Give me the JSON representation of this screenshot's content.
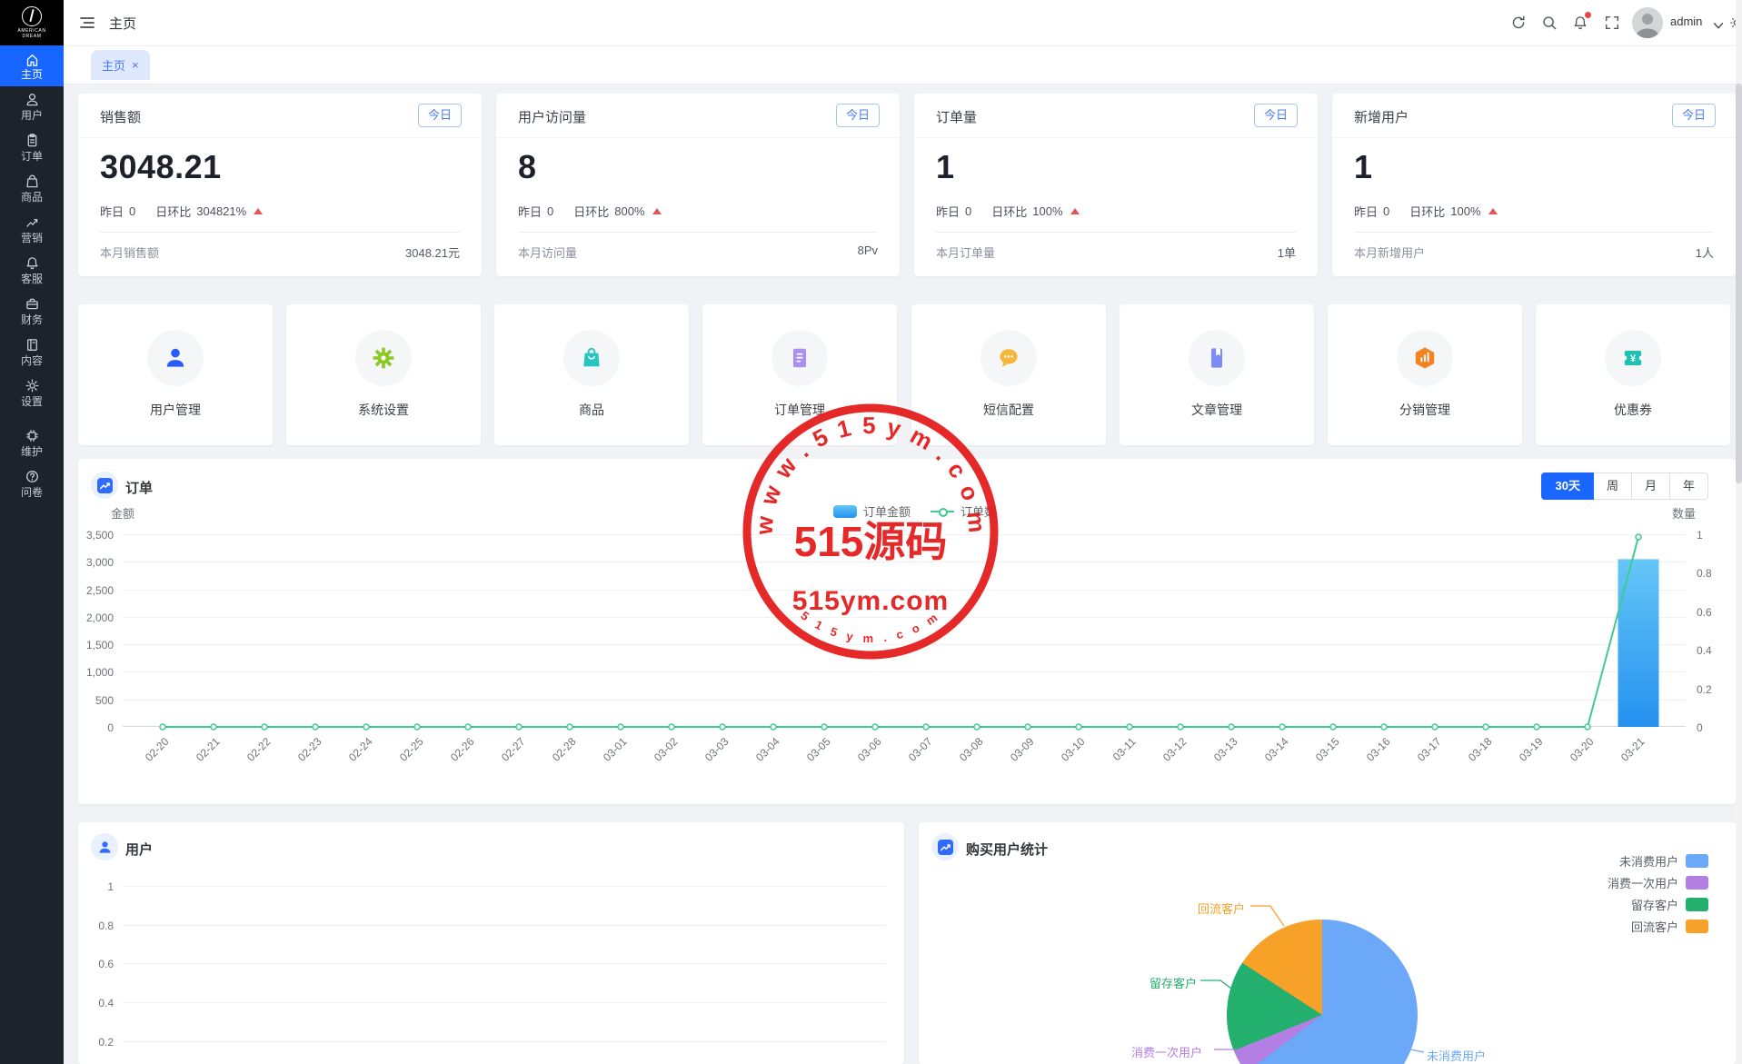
{
  "app": {
    "topbar": {
      "title": "主页",
      "user_name": "admin"
    },
    "logo": {
      "line1": "AMERICAN",
      "line2": "DREAM"
    },
    "sidebar": [
      {
        "label": "主页",
        "icon": "home",
        "active": true
      },
      {
        "label": "用户",
        "icon": "user",
        "active": false
      },
      {
        "label": "订单",
        "icon": "order",
        "active": false
      },
      {
        "label": "商品",
        "icon": "goods",
        "active": false
      },
      {
        "label": "营销",
        "icon": "marketing",
        "active": false
      },
      {
        "label": "客服",
        "icon": "service",
        "active": false
      },
      {
        "label": "财务",
        "icon": "finance",
        "active": false
      },
      {
        "label": "内容",
        "icon": "book",
        "active": false
      },
      {
        "label": "设置",
        "icon": "gear",
        "active": false
      },
      {
        "label": "维护",
        "icon": "chip",
        "active": false
      },
      {
        "label": "问卷",
        "icon": "question",
        "active": false
      }
    ],
    "tab": {
      "label": "主页",
      "close": "×"
    },
    "stat_cards": [
      {
        "title": "销售额",
        "badge": "今日",
        "value": "3048.21",
        "yesterday_label": "昨日",
        "yesterday_value": "0",
        "ratio_label": "日环比",
        "ratio_value": "304821%",
        "footer_label": "本月销售额",
        "footer_value": "3048.21元"
      },
      {
        "title": "用户访问量",
        "badge": "今日",
        "value": "8",
        "yesterday_label": "昨日",
        "yesterday_value": "0",
        "ratio_label": "日环比",
        "ratio_value": "800%",
        "footer_label": "本月访问量",
        "footer_value": "8Pv"
      },
      {
        "title": "订单量",
        "badge": "今日",
        "value": "1",
        "yesterday_label": "昨日",
        "yesterday_value": "0",
        "ratio_label": "日环比",
        "ratio_value": "100%",
        "footer_label": "本月订单量",
        "footer_value": "1单"
      },
      {
        "title": "新增用户",
        "badge": "今日",
        "value": "1",
        "yesterday_label": "昨日",
        "yesterday_value": "0",
        "ratio_label": "日环比",
        "ratio_value": "100%",
        "footer_label": "本月新增用户",
        "footer_value": "1人"
      }
    ],
    "shortcuts": [
      {
        "label": "用户管理",
        "icon": "sc-user",
        "color": "#2b5bf7"
      },
      {
        "label": "系统设置",
        "icon": "sc-gear",
        "color": "#8bc926"
      },
      {
        "label": "商品",
        "icon": "sc-bag",
        "color": "#26c6c0"
      },
      {
        "label": "订单管理",
        "icon": "sc-doc",
        "color": "#a98ff0"
      },
      {
        "label": "短信配置",
        "icon": "sc-chat",
        "color": "#f5b73a"
      },
      {
        "label": "文章管理",
        "icon": "sc-book",
        "color": "#7b8cf5"
      },
      {
        "label": "分销管理",
        "icon": "sc-hex",
        "color": "#f58220"
      },
      {
        "label": "优惠券",
        "icon": "sc-ticket",
        "color": "#1fc1b3"
      }
    ],
    "watermark": {
      "arc_top": "w w w . 5 1 5 y m . c o m",
      "center": "515源码",
      "center_sub": "515ym.com",
      "arc_bottom": "5 1 5 y m . c o m",
      "color": "#e41e1e"
    }
  },
  "chart_data": [
    {
      "id": "orders",
      "type": "bar+line",
      "title": "订单",
      "range_buttons": [
        "30天",
        "周",
        "月",
        "年"
      ],
      "active_range": "30天",
      "axis_left_label": "金额",
      "axis_right_label": "数量",
      "left_ticks": [
        "3,500",
        "3,000",
        "2,500",
        "2,000",
        "1,500",
        "1,000",
        "500",
        "0"
      ],
      "right_ticks": [
        "1",
        "0.8",
        "0.6",
        "0.4",
        "0.2",
        "0"
      ],
      "ylim_left": [
        0,
        3500
      ],
      "ylim_right": [
        0,
        1
      ],
      "grid": true,
      "legend_position": "top-center",
      "categories": [
        "02-20",
        "02-21",
        "02-22",
        "02-23",
        "02-24",
        "02-25",
        "02-26",
        "02-27",
        "02-28",
        "03-01",
        "03-02",
        "03-03",
        "03-04",
        "03-05",
        "03-06",
        "03-07",
        "03-08",
        "03-09",
        "03-10",
        "03-11",
        "03-12",
        "03-13",
        "03-14",
        "03-15",
        "03-16",
        "03-17",
        "03-18",
        "03-19",
        "03-20",
        "03-21"
      ],
      "series": [
        {
          "name": "订单金额",
          "type": "bar",
          "axis": "left",
          "color_top": "#65c6f7",
          "color_bottom": "#2491ef",
          "values": [
            0,
            0,
            0,
            0,
            0,
            0,
            0,
            0,
            0,
            0,
            0,
            0,
            0,
            0,
            0,
            0,
            0,
            0,
            0,
            0,
            0,
            0,
            0,
            0,
            0,
            0,
            0,
            0,
            0,
            3048.21
          ]
        },
        {
          "name": "订单数",
          "type": "line",
          "axis": "right",
          "color": "#3dcc8e",
          "values": [
            0,
            0,
            0,
            0,
            0,
            0,
            0,
            0,
            0,
            0,
            0,
            0,
            0,
            0,
            0,
            0,
            0,
            0,
            0,
            0,
            0,
            0,
            0,
            0,
            0,
            0,
            0,
            0,
            0,
            1
          ]
        }
      ]
    },
    {
      "id": "users",
      "type": "line",
      "title": "用户",
      "yticks": [
        "1",
        "0.8",
        "0.6",
        "0.4",
        "0.2"
      ],
      "ylim": [
        0,
        1
      ],
      "grid": true
    },
    {
      "id": "purchase_users",
      "type": "pie",
      "title": "购买用户统计",
      "legend_position": "right",
      "slices": [
        {
          "name": "未消费用户",
          "pct": 64.7,
          "color": "#6ca8f8"
        },
        {
          "name": "消费一次用户",
          "pct": 4.2,
          "color": "#b37fe3"
        },
        {
          "name": "留存客户",
          "pct": 15.3,
          "color": "#23b06e"
        },
        {
          "name": "回流客户",
          "pct": 15.8,
          "color": "#f7a128"
        }
      ]
    }
  ]
}
